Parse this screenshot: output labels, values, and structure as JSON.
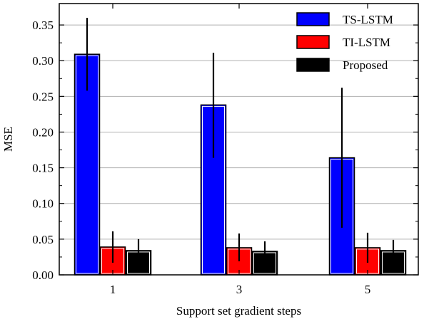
{
  "chart_data": {
    "type": "bar",
    "categories": [
      "1",
      "3",
      "5"
    ],
    "series": [
      {
        "name": "TS-LSTM",
        "color": "#0000ff",
        "values": [
          0.309,
          0.238,
          0.164
        ],
        "err_low": [
          0.258,
          0.164,
          0.066
        ],
        "err_high": [
          0.36,
          0.311,
          0.262
        ]
      },
      {
        "name": "TI-LSTM",
        "color": "#ff0000",
        "values": [
          0.039,
          0.038,
          0.038
        ],
        "err_low": [
          0.017,
          0.019,
          0.017
        ],
        "err_high": [
          0.061,
          0.058,
          0.059
        ]
      },
      {
        "name": "Proposed",
        "color": "#000000",
        "values": [
          0.034,
          0.033,
          0.034
        ],
        "err_low": [
          0.018,
          0.02,
          0.02
        ],
        "err_high": [
          0.05,
          0.047,
          0.049
        ]
      }
    ],
    "xlabel": "Support set gradient steps",
    "ylabel": "MSE",
    "ylim": [
      0,
      0.38
    ],
    "yticks": [
      "0.00",
      "0.05",
      "0.10",
      "0.15",
      "0.20",
      "0.25",
      "0.30",
      "0.35"
    ],
    "grid": "horizontal",
    "legend_position": "top-right"
  }
}
